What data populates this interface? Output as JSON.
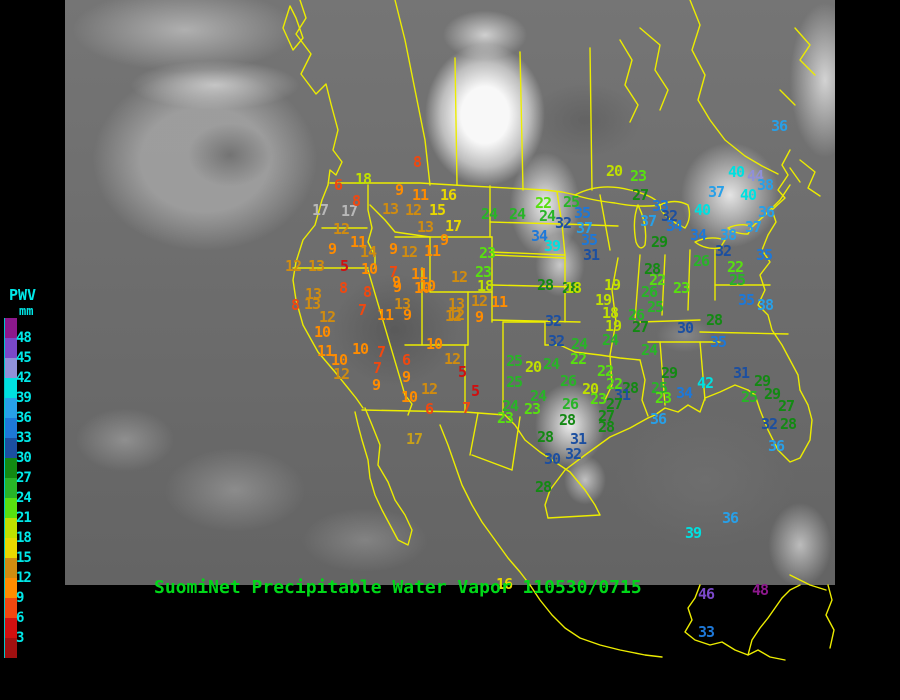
{
  "legend": {
    "title": "PWV",
    "unit": "mm",
    "label_color": "#00E8E8",
    "labels": [
      "48",
      "45",
      "42",
      "39",
      "36",
      "33",
      "30",
      "27",
      "24",
      "21",
      "18",
      "15",
      "12",
      "9",
      "6",
      "3"
    ],
    "blocks": [
      "#8C188C",
      "#7A48C8",
      "#9090D8",
      "#00E0E0",
      "#28A0E8",
      "#1E78D8",
      "#1C4FA0",
      "#138913",
      "#28B428",
      "#58E010",
      "#C0E000",
      "#E8D800",
      "#D08C10",
      "#FF8C00",
      "#F04810",
      "#D01010",
      "#A01010"
    ]
  },
  "footer": {
    "title": "SuomiNet Precipitable Water Vapor 110530/0715",
    "color": "#00D818"
  },
  "map": {
    "line_color": "#ECEC00"
  },
  "palette": [
    "#D01010",
    "#F04810",
    "#FF8C00",
    "#D08C10",
    "#E8D800",
    "#C0E000",
    "#58E010",
    "#28B428",
    "#138913",
    "#1C4FA0",
    "#1E78D8",
    "#28A0E8",
    "#00E0E0",
    "#9090D8",
    "#7A48C8",
    "#8C188C"
  ],
  "stations": [
    [
      8,
      417,
      163
    ],
    [
      6,
      338,
      186
    ],
    [
      18,
      363,
      180
    ],
    [
      9,
      399,
      191
    ],
    [
      11,
      420,
      196
    ],
    [
      16,
      448,
      196
    ],
    [
      17,
      320,
      211,
      "#B8B8B8"
    ],
    [
      17,
      349,
      212,
      "#B8B8B8"
    ],
    [
      8,
      356,
      202
    ],
    [
      13,
      390,
      210
    ],
    [
      12,
      413,
      211
    ],
    [
      15,
      437,
      211
    ],
    [
      13,
      425,
      228
    ],
    [
      17,
      453,
      227
    ],
    [
      12,
      341,
      230
    ],
    [
      9,
      444,
      241
    ],
    [
      9,
      332,
      250
    ],
    [
      11,
      358,
      243
    ],
    [
      14,
      368,
      253
    ],
    [
      9,
      393,
      250
    ],
    [
      12,
      409,
      253
    ],
    [
      11,
      432,
      252
    ],
    [
      12,
      293,
      267
    ],
    [
      13,
      316,
      267
    ],
    [
      5,
      344,
      267
    ],
    [
      10,
      369,
      270
    ],
    [
      7,
      393,
      273
    ],
    [
      11,
      419,
      275
    ],
    [
      9,
      396,
      283
    ],
    [
      10,
      427,
      287
    ],
    [
      12,
      459,
      278
    ],
    [
      23,
      487,
      254
    ],
    [
      23,
      483,
      273
    ],
    [
      18,
      485,
      287
    ],
    [
      13,
      313,
      295
    ],
    [
      8,
      343,
      289
    ],
    [
      8,
      367,
      293
    ],
    [
      9,
      397,
      288
    ],
    [
      10,
      422,
      289
    ],
    [
      8,
      295,
      306
    ],
    [
      13,
      312,
      305
    ],
    [
      12,
      327,
      318
    ],
    [
      10,
      322,
      333
    ],
    [
      7,
      362,
      311
    ],
    [
      11,
      385,
      316
    ],
    [
      13,
      402,
      305
    ],
    [
      9,
      407,
      316
    ],
    [
      13,
      456,
      305
    ],
    [
      12,
      456,
      316
    ],
    [
      11,
      325,
      352
    ],
    [
      10,
      339,
      361
    ],
    [
      12,
      341,
      375
    ],
    [
      10,
      360,
      350
    ],
    [
      7,
      381,
      353
    ],
    [
      7,
      377,
      369
    ],
    [
      9,
      376,
      386
    ],
    [
      6,
      406,
      361
    ],
    [
      9,
      406,
      378
    ],
    [
      10,
      409,
      398
    ],
    [
      12,
      429,
      390
    ],
    [
      6,
      429,
      410
    ],
    [
      10,
      434,
      345
    ],
    [
      12,
      452,
      360
    ],
    [
      5,
      462,
      373
    ],
    [
      5,
      475,
      392
    ],
    [
      7,
      466,
      409
    ],
    [
      17,
      414,
      440,
      "#C8A018"
    ],
    [
      24,
      489,
      215
    ],
    [
      24,
      517,
      215
    ],
    [
      22,
      543,
      204
    ],
    [
      24,
      547,
      217
    ],
    [
      25,
      571,
      203
    ],
    [
      35,
      582,
      214
    ],
    [
      32,
      563,
      224
    ],
    [
      34,
      539,
      237
    ],
    [
      37,
      584,
      229
    ],
    [
      39,
      552,
      247
    ],
    [
      35,
      589,
      241
    ],
    [
      31,
      591,
      256
    ],
    [
      28,
      545,
      286
    ],
    [
      28,
      570,
      289
    ],
    [
      12,
      479,
      302
    ],
    [
      11,
      499,
      303
    ],
    [
      12,
      453,
      317
    ],
    [
      9,
      479,
      318
    ],
    [
      32,
      553,
      322
    ],
    [
      32,
      556,
      342
    ],
    [
      20,
      614,
      172
    ],
    [
      23,
      638,
      177
    ],
    [
      27,
      640,
      196
    ],
    [
      33,
      660,
      207
    ],
    [
      37,
      648,
      222
    ],
    [
      32,
      669,
      217
    ],
    [
      34,
      674,
      227
    ],
    [
      34,
      698,
      236
    ],
    [
      40,
      702,
      211
    ],
    [
      29,
      659,
      243
    ],
    [
      26,
      701,
      262
    ],
    [
      28,
      652,
      270
    ],
    [
      22,
      657,
      281
    ],
    [
      23,
      681,
      289
    ],
    [
      19,
      612,
      286
    ],
    [
      19,
      603,
      301
    ],
    [
      18,
      610,
      314
    ],
    [
      19,
      613,
      327
    ],
    [
      18,
      573,
      289
    ],
    [
      26,
      649,
      293
    ],
    [
      26,
      636,
      316
    ],
    [
      25,
      655,
      308
    ],
    [
      27,
      640,
      328
    ],
    [
      24,
      610,
      341
    ],
    [
      24,
      649,
      351
    ],
    [
      30,
      685,
      329
    ],
    [
      28,
      714,
      321
    ],
    [
      35,
      718,
      343
    ],
    [
      22,
      735,
      268
    ],
    [
      25,
      737,
      281
    ],
    [
      35,
      764,
      256
    ],
    [
      35,
      746,
      301
    ],
    [
      38,
      765,
      306
    ],
    [
      32,
      723,
      252
    ],
    [
      36,
      779,
      127
    ],
    [
      40,
      736,
      173
    ],
    [
      44,
      755,
      177
    ],
    [
      38,
      765,
      186
    ],
    [
      37,
      716,
      193
    ],
    [
      40,
      748,
      196
    ],
    [
      36,
      766,
      213
    ],
    [
      37,
      753,
      228
    ],
    [
      38,
      728,
      236
    ],
    [
      29,
      669,
      374
    ],
    [
      31,
      741,
      374
    ],
    [
      29,
      762,
      382
    ],
    [
      42,
      705,
      384,
      "#00E0E0"
    ],
    [
      25,
      659,
      389
    ],
    [
      28,
      630,
      389
    ],
    [
      31,
      622,
      396
    ],
    [
      23,
      663,
      399
    ],
    [
      34,
      684,
      394
    ],
    [
      27,
      614,
      405
    ],
    [
      36,
      658,
      420
    ],
    [
      25,
      749,
      398
    ],
    [
      29,
      772,
      395
    ],
    [
      27,
      786,
      407
    ],
    [
      32,
      769,
      425
    ],
    [
      28,
      788,
      425
    ],
    [
      36,
      776,
      447
    ],
    [
      24,
      579,
      345
    ],
    [
      22,
      578,
      360
    ],
    [
      25,
      514,
      362
    ],
    [
      20,
      533,
      368
    ],
    [
      24,
      551,
      365
    ],
    [
      25,
      514,
      383
    ],
    [
      26,
      568,
      382
    ],
    [
      22,
      605,
      372
    ],
    [
      22,
      614,
      385
    ],
    [
      20,
      590,
      390
    ],
    [
      23,
      598,
      400
    ],
    [
      24,
      538,
      397
    ],
    [
      23,
      532,
      410
    ],
    [
      24,
      510,
      407
    ],
    [
      23,
      505,
      419
    ],
    [
      26,
      570,
      405
    ],
    [
      28,
      567,
      421
    ],
    [
      28,
      545,
      438
    ],
    [
      31,
      578,
      440
    ],
    [
      32,
      573,
      455
    ],
    [
      30,
      552,
      460
    ],
    [
      27,
      606,
      417
    ],
    [
      28,
      606,
      428
    ],
    [
      28,
      543,
      488
    ],
    [
      16,
      504,
      585
    ],
    [
      36,
      730,
      519
    ],
    [
      39,
      693,
      534
    ],
    [
      46,
      706,
      595
    ],
    [
      48,
      760,
      591
    ],
    [
      33,
      706,
      633
    ]
  ]
}
